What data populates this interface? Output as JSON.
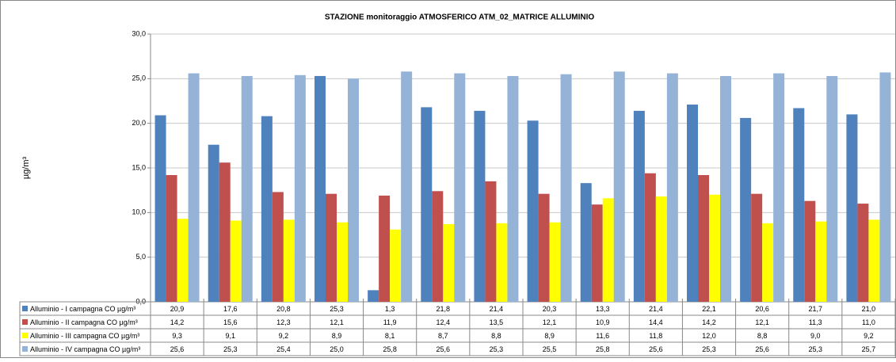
{
  "chart_data": {
    "type": "bar",
    "title": "STAZIONE monitoraggio ATMOSFERICO ATM_02_MATRICE ALLUMINIO",
    "y_label": "µg/m³",
    "categories": [
      null,
      null,
      null,
      null,
      null,
      null,
      null,
      null,
      null,
      null,
      null,
      null,
      null,
      null
    ],
    "series": [
      {
        "name": "Alluminio - I campagna CO µg/m³",
        "color": "#4f81bd",
        "values": [
          20.9,
          17.6,
          20.8,
          25.3,
          1.3,
          21.8,
          21.4,
          20.3,
          13.3,
          21.4,
          22.1,
          20.6,
          21.7,
          21.0
        ],
        "value_labels": [
          "20,9",
          "17,6",
          "20,8",
          "25,3",
          "1,3",
          "21,8",
          "21,4",
          "20,3",
          "13,3",
          "21,4",
          "22,1",
          "20,6",
          "21,7",
          "21,0"
        ]
      },
      {
        "name": "Alluminio - II campagna CO µg/m³",
        "color": "#c0504d",
        "values": [
          14.2,
          15.6,
          12.3,
          12.1,
          11.9,
          12.4,
          13.5,
          12.1,
          10.9,
          14.4,
          14.2,
          12.1,
          11.3,
          11.0
        ],
        "value_labels": [
          "14,2",
          "15,6",
          "12,3",
          "12,1",
          "11,9",
          "12,4",
          "13,5",
          "12,1",
          "10,9",
          "14,4",
          "14,2",
          "12,1",
          "11,3",
          "11,0"
        ]
      },
      {
        "name": "Alluminio - III campagna CO µg/m³",
        "color": "#ffff00",
        "values": [
          9.3,
          9.1,
          9.2,
          8.9,
          8.1,
          8.7,
          8.8,
          8.9,
          11.6,
          11.8,
          12.0,
          8.8,
          9.0,
          9.2
        ],
        "value_labels": [
          "9,3",
          "9,1",
          "9,2",
          "8,9",
          "8,1",
          "8,7",
          "8,8",
          "8,9",
          "11,6",
          "11,8",
          "12,0",
          "8,8",
          "9,0",
          "9,2"
        ]
      },
      {
        "name": "Alluminio - IV campagna CO µg/m³",
        "color": "#95b3d7",
        "values": [
          25.6,
          25.3,
          25.4,
          25.0,
          25.8,
          25.6,
          25.3,
          25.5,
          25.8,
          25.6,
          25.3,
          25.6,
          25.3,
          25.7
        ],
        "value_labels": [
          "25,6",
          "25,3",
          "25,4",
          "25,0",
          "25,8",
          "25,6",
          "25,3",
          "25,5",
          "25,8",
          "25,6",
          "25,3",
          "25,6",
          "25,3",
          "25,7"
        ]
      }
    ],
    "ylim": [
      0,
      30
    ],
    "yticks": [
      {
        "value": 0,
        "label": "0,0"
      },
      {
        "value": 5,
        "label": "5,0"
      },
      {
        "value": 10,
        "label": "10,0"
      },
      {
        "value": 15,
        "label": "15,0"
      },
      {
        "value": 20,
        "label": "20,0"
      },
      {
        "value": 25,
        "label": "25,0"
      },
      {
        "value": 30,
        "label": "30,0"
      }
    ],
    "grid": true
  }
}
